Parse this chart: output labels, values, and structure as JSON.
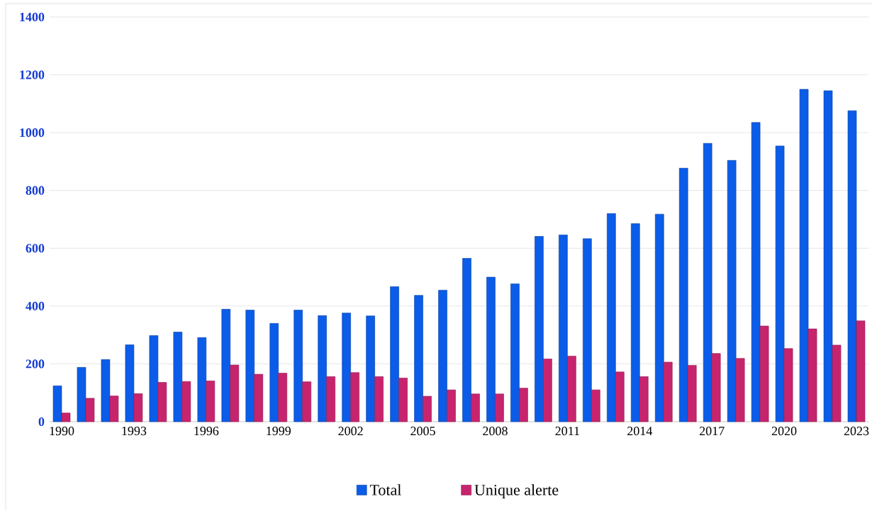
{
  "chart_data": {
    "type": "bar",
    "categories": [
      "1990",
      null,
      null,
      "1993",
      null,
      null,
      "1996",
      null,
      null,
      "1999",
      null,
      null,
      "2002",
      null,
      null,
      "2005",
      null,
      null,
      "2008",
      null,
      null,
      "2011",
      null,
      null,
      "2014",
      null,
      null,
      "2017",
      null,
      null,
      "2020",
      null,
      null,
      "2023"
    ],
    "series": [
      {
        "name": "Total",
        "color": "#0b5ce8",
        "values": [
          124,
          188,
          215,
          266,
          298,
          310,
          291,
          389,
          386,
          340,
          386,
          367,
          376,
          366,
          467,
          437,
          455,
          565,
          500,
          477,
          641,
          646,
          633,
          720,
          685,
          718,
          877,
          963,
          904,
          1035,
          954,
          1150,
          1145,
          1076
        ]
      },
      {
        "name": "Unique alerte",
        "color": "#c8246e",
        "values": [
          30,
          81,
          89,
          97,
          136,
          139,
          141,
          196,
          164,
          168,
          138,
          156,
          170,
          156,
          151,
          88,
          110,
          96,
          96,
          116,
          217,
          227,
          110,
          172,
          156,
          206,
          195,
          236,
          219,
          331,
          253,
          321,
          265,
          349
        ]
      }
    ],
    "ylim": [
      0,
      1400
    ],
    "yticks": [
      0,
      200,
      400,
      600,
      800,
      1000,
      1200,
      1400
    ],
    "grid": "y",
    "legend": "bottom"
  }
}
